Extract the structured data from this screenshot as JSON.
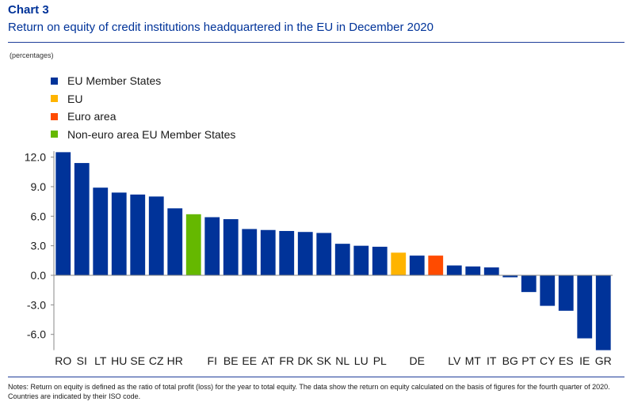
{
  "header": {
    "chart_label": "Chart 3",
    "title": "Return on equity of credit institutions headquartered in the EU in December 2020",
    "units": "(percentages)"
  },
  "legend": [
    {
      "label": "EU Member States",
      "color": "#003399"
    },
    {
      "label": "EU",
      "color": "#FFB400"
    },
    {
      "label": "Euro area",
      "color": "#FF4B00"
    },
    {
      "label": "Non-euro area EU Member States",
      "color": "#65B800"
    }
  ],
  "notes": "Notes: Return on equity is defined as the ratio of total profit (loss) for the year to total equity. The data show the return on equity calculated on the basis of figures for the fourth quarter of 2020. Countries are indicated by their ISO code.",
  "chart_data": {
    "type": "bar",
    "title": "Return on equity of credit institutions headquartered in the EU in December 2020",
    "xlabel": "",
    "ylabel": "",
    "ylim": [
      -7.6,
      12.6
    ],
    "yticks": [
      "12.0",
      "9.0",
      "6.0",
      "3.0",
      "0.0",
      "-3.0",
      "-6.0"
    ],
    "ytick_values": [
      12,
      9,
      6,
      3,
      0,
      -3,
      -6
    ],
    "grid": false,
    "legend_position": "top-left",
    "bars": [
      {
        "label": "RO",
        "value": 12.5,
        "group": "EU Member States"
      },
      {
        "label": "SI",
        "value": 11.4,
        "group": "EU Member States"
      },
      {
        "label": "LT",
        "value": 8.9,
        "group": "EU Member States"
      },
      {
        "label": "HU",
        "value": 8.4,
        "group": "EU Member States"
      },
      {
        "label": "SE",
        "value": 8.2,
        "group": "EU Member States"
      },
      {
        "label": "CZ",
        "value": 8.0,
        "group": "EU Member States"
      },
      {
        "label": "HR",
        "value": 6.8,
        "group": "EU Member States"
      },
      {
        "label": "",
        "value": 6.2,
        "group": "Non-euro area EU Member States"
      },
      {
        "label": "FI",
        "value": 5.9,
        "group": "EU Member States"
      },
      {
        "label": "BE",
        "value": 5.7,
        "group": "EU Member States"
      },
      {
        "label": "EE",
        "value": 4.7,
        "group": "EU Member States"
      },
      {
        "label": "AT",
        "value": 4.6,
        "group": "EU Member States"
      },
      {
        "label": "FR",
        "value": 4.5,
        "group": "EU Member States"
      },
      {
        "label": "DK",
        "value": 4.4,
        "group": "EU Member States"
      },
      {
        "label": "SK",
        "value": 4.3,
        "group": "EU Member States"
      },
      {
        "label": "NL",
        "value": 3.2,
        "group": "EU Member States"
      },
      {
        "label": "LU",
        "value": 3.0,
        "group": "EU Member States"
      },
      {
        "label": "PL",
        "value": 2.9,
        "group": "EU Member States"
      },
      {
        "label": "",
        "value": 2.3,
        "group": "EU"
      },
      {
        "label": "DE",
        "value": 2.0,
        "group": "EU Member States"
      },
      {
        "label": "",
        "value": 2.0,
        "group": "Euro area"
      },
      {
        "label": "LV",
        "value": 1.0,
        "group": "EU Member States"
      },
      {
        "label": "MT",
        "value": 0.9,
        "group": "EU Member States"
      },
      {
        "label": "IT",
        "value": 0.8,
        "group": "EU Member States"
      },
      {
        "label": "BG",
        "value": -0.2,
        "group": "EU Member States"
      },
      {
        "label": "PT",
        "value": -1.7,
        "group": "EU Member States"
      },
      {
        "label": "CY",
        "value": -3.1,
        "group": "EU Member States"
      },
      {
        "label": "ES",
        "value": -3.6,
        "group": "EU Member States"
      },
      {
        "label": "IE",
        "value": -6.4,
        "group": "EU Member States"
      },
      {
        "label": "GR",
        "value": -7.6,
        "group": "EU Member States"
      }
    ]
  }
}
